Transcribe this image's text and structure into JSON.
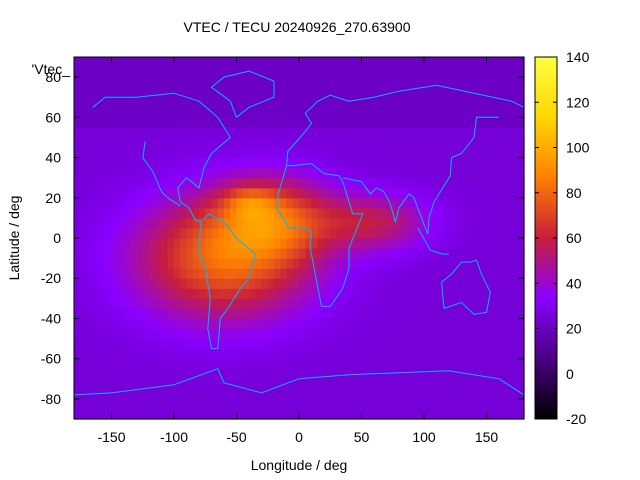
{
  "chart_data": {
    "type": "heatmap",
    "title": "VTEC / TECU 20240926_270.63900",
    "xlabel": "Longitude / deg",
    "ylabel": "Latitude / deg",
    "xlim": [
      -180,
      180
    ],
    "ylim": [
      -90,
      90
    ],
    "x_ticks": [
      -150,
      -100,
      -50,
      0,
      50,
      100,
      150
    ],
    "y_ticks": [
      -80,
      -60,
      -40,
      -20,
      0,
      20,
      40,
      60,
      80
    ],
    "colorbar": {
      "range": [
        -20,
        140
      ],
      "ticks": [
        -20,
        0,
        20,
        40,
        60,
        80,
        100,
        120,
        140
      ],
      "colormap": [
        "#000000",
        "#4b0082",
        "#8a00ff",
        "#c81e3c",
        "#ff7f00",
        "#ffd700",
        "#ffff40"
      ]
    },
    "legend_label": "'Vtec_",
    "background_level": 25,
    "blobs": [
      {
        "lon": -60,
        "lat": -10,
        "amp": 55,
        "sx": 70,
        "sy": 30
      },
      {
        "lon": -20,
        "lat": 10,
        "amp": 40,
        "sx": 45,
        "sy": 20
      },
      {
        "lon": 60,
        "lat": 8,
        "amp": 30,
        "sx": 45,
        "sy": 14
      },
      {
        "lon": -40,
        "lat": 18,
        "amp": 20,
        "sx": 20,
        "sy": 8
      }
    ]
  }
}
